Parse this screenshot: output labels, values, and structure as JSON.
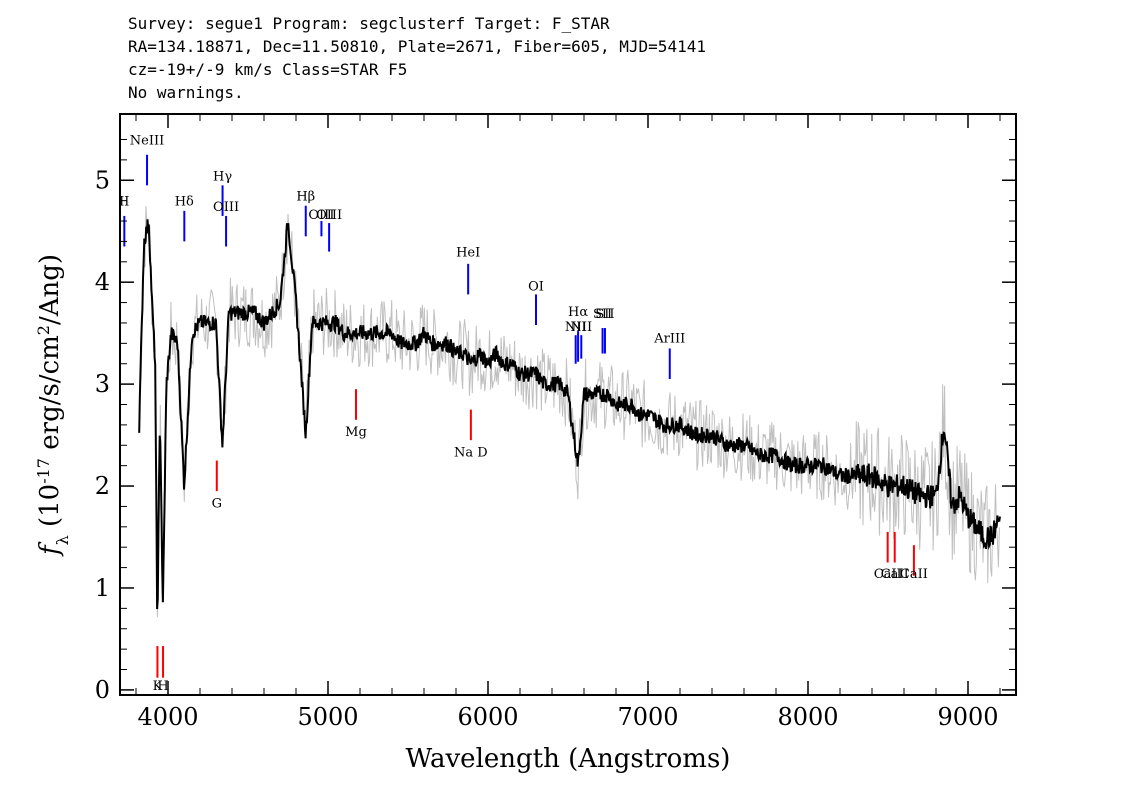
{
  "header": {
    "line1": "Survey: segue1 Program: segclusterf Target: F_STAR",
    "line2": "RA=134.18871, Dec=11.50810, Plate=2671, Fiber=605, MJD=54141",
    "line3": "cz=-19+/-9 km/s Class=STAR F5",
    "line4": "No warnings."
  },
  "chart_data": {
    "type": "line",
    "xlabel": "Wavelength (Angstroms)",
    "ylabel": "f_λ (10^-17 erg/s/cm^2/Ang)",
    "xlim": [
      3700,
      9300
    ],
    "ylim": [
      -0.05,
      5.65
    ],
    "xticks": [
      4000,
      5000,
      6000,
      7000,
      8000,
      9000
    ],
    "yticks": [
      0,
      1,
      2,
      3,
      4,
      5
    ],
    "grid": false,
    "colors": {
      "smoothed": "#000000",
      "raw": "#c0c0c0",
      "emission": "#0000ff",
      "absorption": "#ff0000"
    },
    "series": [
      {
        "name": "",
        "x": [
          3820,
          3850,
          3880,
          3900,
          3920,
          3933,
          3950,
          3968,
          3990,
          4020,
          4060,
          4101,
          4150,
          4200,
          4250,
          4300,
          4340,
          4380,
          4420,
          4480,
          4540,
          4600,
          4650,
          4700,
          4750,
          4800,
          4861,
          4900,
          4950,
          5000,
          5050,
          5100,
          5150,
          5200,
          5250,
          5300,
          5350,
          5400,
          5450,
          5500,
          5550,
          5600,
          5650,
          5700,
          5750,
          5800,
          5850,
          5893,
          5950,
          6000,
          6050,
          6100,
          6150,
          6200,
          6250,
          6300,
          6350,
          6400,
          6450,
          6500,
          6563,
          6600,
          6650,
          6700,
          6750,
          6800,
          6850,
          6900,
          6950,
          7000,
          7100,
          7200,
          7300,
          7400,
          7500,
          7600,
          7700,
          7800,
          7900,
          8000,
          8100,
          8200,
          8300,
          8400,
          8500,
          8600,
          8700,
          8800,
          8850,
          8900,
          8950,
          9000,
          9050,
          9100,
          9150,
          9200
        ],
        "y": [
          2.6,
          4.4,
          4.6,
          3.8,
          3.2,
          0.6,
          2.7,
          0.8,
          3.0,
          3.5,
          3.4,
          2.0,
          3.5,
          3.6,
          3.6,
          3.6,
          2.4,
          3.7,
          3.7,
          3.7,
          3.7,
          3.6,
          3.7,
          3.8,
          4.6,
          3.8,
          2.5,
          3.6,
          3.6,
          3.6,
          3.6,
          3.5,
          3.5,
          3.5,
          3.5,
          3.5,
          3.5,
          3.5,
          3.4,
          3.4,
          3.4,
          3.5,
          3.4,
          3.4,
          3.4,
          3.3,
          3.3,
          3.2,
          3.3,
          3.2,
          3.3,
          3.2,
          3.2,
          3.1,
          3.1,
          3.1,
          3.0,
          3.0,
          3.0,
          2.9,
          2.2,
          2.9,
          2.9,
          2.9,
          2.9,
          2.8,
          2.8,
          2.8,
          2.7,
          2.7,
          2.6,
          2.6,
          2.5,
          2.5,
          2.4,
          2.4,
          2.3,
          2.3,
          2.2,
          2.2,
          2.2,
          2.1,
          2.1,
          2.1,
          2.0,
          2.0,
          1.9,
          1.9,
          2.6,
          1.8,
          1.9,
          1.7,
          1.6,
          1.5,
          1.5,
          1.7
        ]
      }
    ],
    "emission_lines": [
      {
        "label": "NeIII",
        "x": 3869,
        "y0": 4.95,
        "y1": 5.25,
        "label_y": 5.35
      },
      {
        "label": "II",
        "x": 3727,
        "y0": 4.35,
        "y1": 4.65,
        "label_y": 4.75
      },
      {
        "label": "Hδ",
        "x": 4102,
        "y0": 4.4,
        "y1": 4.7,
        "label_y": 4.75
      },
      {
        "label": "Hγ",
        "x": 4341,
        "y0": 4.65,
        "y1": 4.95,
        "label_y": 5.0
      },
      {
        "label": "OIII",
        "x": 4363,
        "y0": 4.35,
        "y1": 4.65,
        "label_y": 4.7
      },
      {
        "label": "Hβ",
        "x": 4861,
        "y0": 4.45,
        "y1": 4.75,
        "label_y": 4.8
      },
      {
        "label": "OIII",
        "x": 4959,
        "y0": 4.45,
        "y1": 4.6,
        "label_y": 4.62
      },
      {
        "label": "OIII",
        "x": 5007,
        "y0": 4.3,
        "y1": 4.58,
        "label_y": 4.62
      },
      {
        "label": "HeI",
        "x": 5876,
        "y0": 3.88,
        "y1": 4.18,
        "label_y": 4.25
      },
      {
        "label": "OI",
        "x": 6300,
        "y0": 3.58,
        "y1": 3.88,
        "label_y": 3.92
      },
      {
        "label": "NII",
        "x": 6548,
        "y0": 3.2,
        "y1": 3.48,
        "label_y": 3.52
      },
      {
        "label": "Hα",
        "x": 6563,
        "y0": 3.22,
        "y1": 3.52,
        "label_y": 3.67
      },
      {
        "label": "NII",
        "x": 6583,
        "y0": 3.25,
        "y1": 3.48,
        "label_y": 3.52
      },
      {
        "label": "SII",
        "x": 6716,
        "y0": 3.3,
        "y1": 3.55,
        "label_y": 3.65
      },
      {
        "label": "SII",
        "x": 6731,
        "y0": 3.3,
        "y1": 3.55,
        "label_y": 3.65
      },
      {
        "label": "ArIII",
        "x": 7136,
        "y0": 3.05,
        "y1": 3.35,
        "label_y": 3.41
      }
    ],
    "absorption_lines": [
      {
        "label": "K",
        "x": 3934,
        "y0": 0.12,
        "y1": 0.43,
        "label_y": 0.0
      },
      {
        "label": "H",
        "x": 3969,
        "y0": 0.12,
        "y1": 0.43,
        "label_y": 0.0
      },
      {
        "label": "G",
        "x": 4305,
        "y0": 1.95,
        "y1": 2.25,
        "label_y": 1.79
      },
      {
        "label": "Mg",
        "x": 5175,
        "y0": 2.65,
        "y1": 2.95,
        "label_y": 2.49
      },
      {
        "label": "Na D",
        "x": 5893,
        "y0": 2.45,
        "y1": 2.75,
        "label_y": 2.29
      },
      {
        "label": "CaII",
        "x": 8498,
        "y0": 1.25,
        "y1": 1.55,
        "label_y": 1.1
      },
      {
        "label": "CaII",
        "x": 8542,
        "y0": 1.25,
        "y1": 1.55,
        "label_y": 1.1
      },
      {
        "label": "CaII",
        "x": 8662,
        "y0": 1.12,
        "y1": 1.42,
        "label_y": 1.1
      }
    ]
  }
}
